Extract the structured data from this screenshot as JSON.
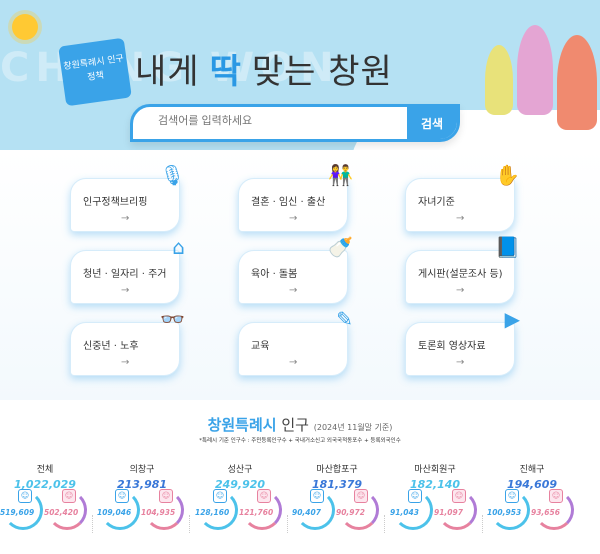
{
  "hero": {
    "bg_text": "CHANG WON",
    "badge": "창원특례시 인구정책",
    "title_pre": "내게",
    "title_em": "딱",
    "title_post": "맞는 창원"
  },
  "search": {
    "placeholder": "검색어를 입력하세요",
    "button": "검색"
  },
  "menu": [
    {
      "label": "인구정책브리핑",
      "icon": "microphone-icon",
      "glyph": "🎙"
    },
    {
      "label": "결혼 · 임신 · 출산",
      "icon": "couple-icon",
      "glyph": "👫"
    },
    {
      "label": "자녀기준",
      "icon": "hand-icon",
      "glyph": "✋"
    },
    {
      "label": "청년 · 일자리 · 주거",
      "icon": "house-icon",
      "glyph": "⌂"
    },
    {
      "label": "육아 · 돌봄",
      "icon": "baby-bottle-icon",
      "glyph": "🍼"
    },
    {
      "label": "게시판(설문조사 등)",
      "icon": "book-icon",
      "glyph": "📘"
    },
    {
      "label": "신중년 · 노후",
      "icon": "glasses-icon",
      "glyph": "👓"
    },
    {
      "label": "교육",
      "icon": "pencil-icon",
      "glyph": "✎"
    },
    {
      "label": "토론회 영상자료",
      "icon": "video-icon",
      "glyph": "▶"
    }
  ],
  "arrow": "→",
  "population": {
    "title": "창원특례시",
    "title_suffix": "인구",
    "date": "(2024년 11월말 기준)",
    "note": "*특례시 기준 인구수 : 주민등록인구수 + 국내거소신고 외국국적동포수 + 등록외국인수",
    "districts": [
      {
        "name": "전체",
        "total": "1,022,029",
        "male": "519,609",
        "female": "502,420",
        "color": "#4cc2ea"
      },
      {
        "name": "의창구",
        "total": "213,981",
        "male": "109,046",
        "female": "104,935",
        "color": "#3a78d8"
      },
      {
        "name": "성산구",
        "total": "249,920",
        "male": "128,160",
        "female": "121,760",
        "color": "#4cc2ea"
      },
      {
        "name": "마산합포구",
        "total": "181,379",
        "male": "90,407",
        "female": "90,972",
        "color": "#3a78d8"
      },
      {
        "name": "마산회원구",
        "total": "182,140",
        "male": "91,043",
        "female": "91,097",
        "color": "#4cc2ea"
      },
      {
        "name": "진해구",
        "total": "194,609",
        "male": "100,953",
        "female": "93,656",
        "color": "#3a78d8"
      }
    ]
  }
}
